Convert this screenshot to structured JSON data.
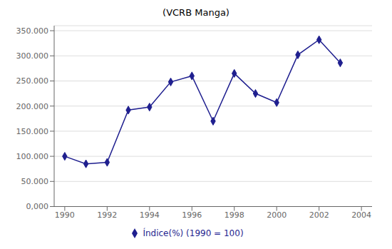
{
  "chart_data": {
    "type": "line",
    "title": "(VCRB Manga)",
    "x": [
      1990,
      1991,
      1992,
      1993,
      1994,
      1995,
      1996,
      1997,
      1998,
      1999,
      2000,
      2001,
      2002,
      2003
    ],
    "series": [
      {
        "name": "Índice(%) (1990 = 100)",
        "color": "#1F1F8F",
        "marker": "diamond",
        "values": [
          100000,
          85000,
          88000,
          192000,
          198000,
          248000,
          260000,
          170000,
          265000,
          225000,
          207000,
          302000,
          332000,
          286000
        ]
      }
    ],
    "xlim": [
      1989.5,
      2004.5
    ],
    "xticks": [
      1990,
      1992,
      1994,
      1996,
      1998,
      2000,
      2002,
      2004
    ],
    "ylim": [
      0,
      360000
    ],
    "yticks": [
      {
        "value": 0,
        "label": "0,000"
      },
      {
        "value": 50000,
        "label": "50.000"
      },
      {
        "value": 100000,
        "label": "100.000"
      },
      {
        "value": 150000,
        "label": "150.000"
      },
      {
        "value": 200000,
        "label": "200.000"
      },
      {
        "value": 250000,
        "label": "250.000"
      },
      {
        "value": 300000,
        "label": "300.000"
      },
      {
        "value": 350000,
        "label": "350.000"
      }
    ],
    "grid": "y",
    "legend": "bottom"
  }
}
